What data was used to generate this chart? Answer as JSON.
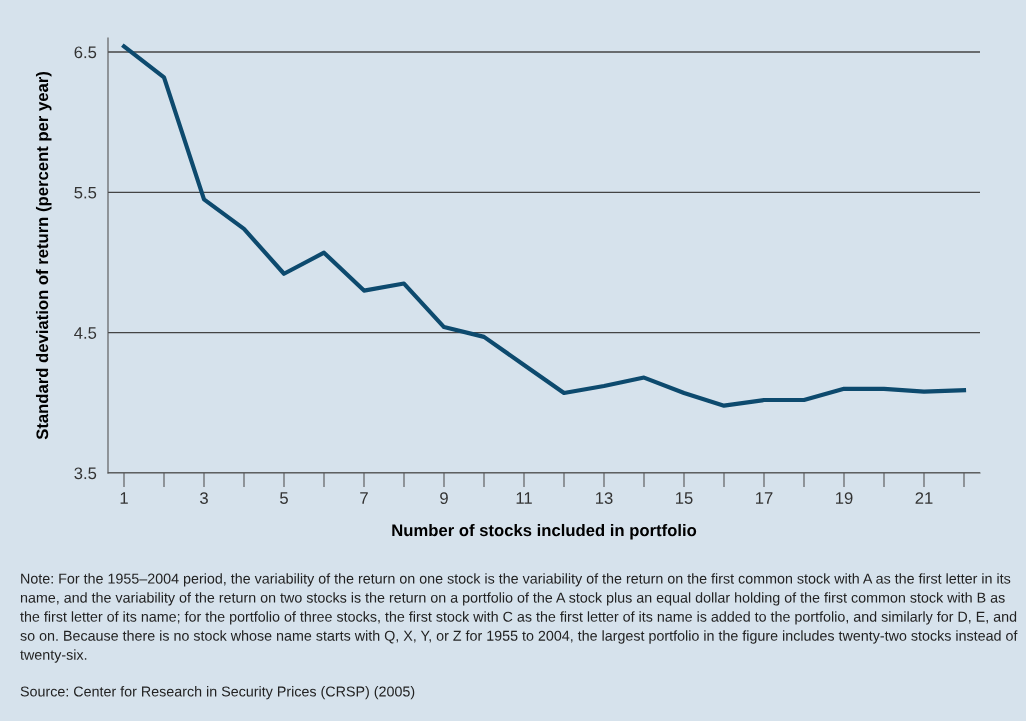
{
  "chart_data": {
    "type": "line",
    "xlabel": "Number of stocks included in portfolio",
    "ylabel": "Standard deviation of return (percent per year)",
    "x": [
      1,
      2,
      3,
      4,
      5,
      6,
      7,
      8,
      9,
      10,
      11,
      12,
      13,
      14,
      15,
      16,
      17,
      18,
      19,
      20,
      21,
      22
    ],
    "series": [
      {
        "color": "#0d4a6e",
        "values": [
          6.54,
          6.32,
          5.45,
          5.24,
          4.92,
          5.07,
          4.8,
          4.85,
          4.54,
          4.47,
          4.27,
          4.07,
          4.12,
          4.18,
          4.07,
          3.98,
          4.02,
          4.02,
          4.1,
          4.1,
          4.08,
          4.09
        ]
      }
    ],
    "xlim": [
      0.6,
      22.4
    ],
    "xticks": [
      1,
      {
        "value": 2,
        "label": null
      },
      3,
      {
        "value": 4,
        "label": null
      },
      5,
      {
        "value": 6,
        "label": null
      },
      7,
      {
        "value": 8,
        "label": null
      },
      9,
      {
        "value": 10,
        "label": null
      },
      11,
      {
        "value": 12,
        "label": null
      },
      13,
      {
        "value": 14,
        "label": null
      },
      15,
      {
        "value": 16,
        "label": null
      },
      17,
      {
        "value": 18,
        "label": null
      },
      19,
      {
        "value": 20,
        "label": null
      },
      21,
      {
        "value": 22,
        "label": null
      }
    ],
    "ylim": [
      3.5,
      6.6
    ],
    "yticks": [
      3.5,
      4.5,
      5.5,
      6.5
    ],
    "grid": "y",
    "marker": "none",
    "line_style": "solid",
    "annotations": [
      "Note: For the 1955–2004 period, the variability of the return on one stock is the variability of the return on the first common stock with A as the first letter in its name, and the variability of the return on two stocks is the return on a portfolio of the A stock plus an equal dollar holding of the first common stock with B as the first letter of its name; for the portfolio of three stocks, the first stock with C as the first letter of its name is added to the portfolio, and similarly for D, E, and so on. Because there is no stock whose name starts with Q, X, Y, or Z for 1955 to 2004, the largest portfolio in the figure includes twenty-two stocks instead of twenty-six.",
      "Source: Center for Research in Security Prices (CRSP) (2005)"
    ]
  }
}
